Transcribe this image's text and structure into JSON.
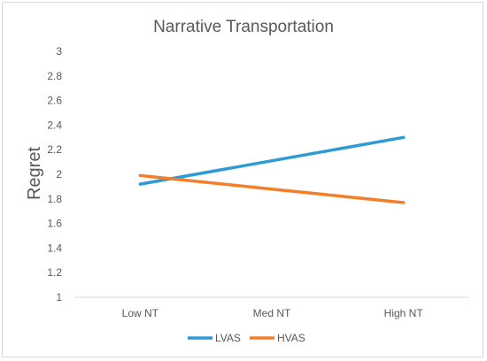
{
  "chart_data": {
    "type": "line",
    "title": "Narrative Transportation",
    "xlabel": "",
    "ylabel": "Regret",
    "categories": [
      "Low NT",
      "Med NT",
      "High NT"
    ],
    "ylim": [
      1,
      3
    ],
    "yticks": [
      "1",
      "1.2",
      "1.4",
      "1.6",
      "1.8",
      "2",
      "2.2",
      "2.4",
      "2.6",
      "2.8",
      "3"
    ],
    "grid": false,
    "legend_position": "bottom",
    "series": [
      {
        "name": "LVAS",
        "color": "#2E9BD6",
        "values": [
          1.92,
          2.11,
          2.3
        ]
      },
      {
        "name": "HVAS",
        "color": "#F47F2A",
        "values": [
          1.99,
          1.88,
          1.77
        ]
      }
    ]
  }
}
